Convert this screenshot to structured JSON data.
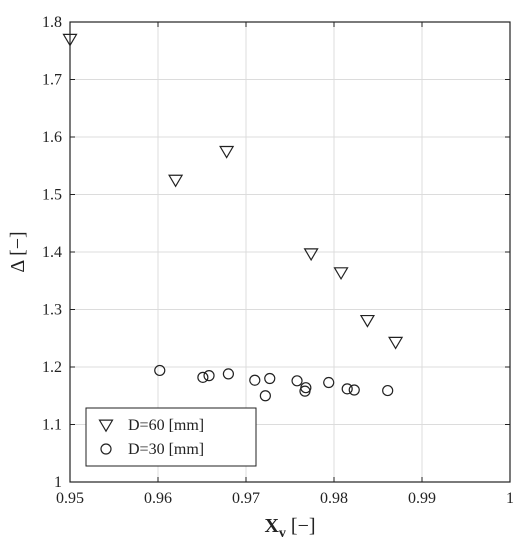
{
  "chart_data": {
    "type": "scatter",
    "title": "",
    "xlabel": "X",
    "xlabel_sub": "v",
    "xlabel_unit": " [−]",
    "ylabel": "Δ [−]",
    "xlim": [
      0.95,
      1.0
    ],
    "ylim": [
      1.0,
      1.8
    ],
    "x_ticks": [
      0.95,
      0.96,
      0.97,
      0.98,
      0.99,
      1.0
    ],
    "x_tick_labels": [
      "0.95",
      "0.96",
      "0.97",
      "0.98",
      "0.99",
      "1"
    ],
    "y_ticks": [
      1.0,
      1.1,
      1.2,
      1.3,
      1.4,
      1.5,
      1.6,
      1.7,
      1.8
    ],
    "y_tick_labels": [
      "1",
      "1.1",
      "1.2",
      "1.3",
      "1.4",
      "1.5",
      "1.6",
      "1.7",
      "1.8"
    ],
    "grid": true,
    "legend_position": "bottom-left",
    "series": [
      {
        "name": "D=60 [mm]",
        "marker": "triangle-down",
        "color": "#222222",
        "points": [
          [
            0.95,
            1.77
          ],
          [
            0.962,
            1.525
          ],
          [
            0.9678,
            1.575
          ],
          [
            0.9774,
            1.397
          ],
          [
            0.9808,
            1.364
          ],
          [
            0.9838,
            1.281
          ],
          [
            0.987,
            1.243
          ]
        ]
      },
      {
        "name": "D=30 [mm]",
        "marker": "circle",
        "color": "#222222",
        "points": [
          [
            0.9602,
            1.194
          ],
          [
            0.9651,
            1.182
          ],
          [
            0.9658,
            1.185
          ],
          [
            0.968,
            1.188
          ],
          [
            0.971,
            1.177
          ],
          [
            0.9722,
            1.15
          ],
          [
            0.9727,
            1.18
          ],
          [
            0.9758,
            1.176
          ],
          [
            0.9767,
            1.158
          ],
          [
            0.9768,
            1.164
          ],
          [
            0.9794,
            1.173
          ],
          [
            0.9815,
            1.162
          ],
          [
            0.9823,
            1.16
          ],
          [
            0.9861,
            1.159
          ]
        ]
      }
    ]
  }
}
